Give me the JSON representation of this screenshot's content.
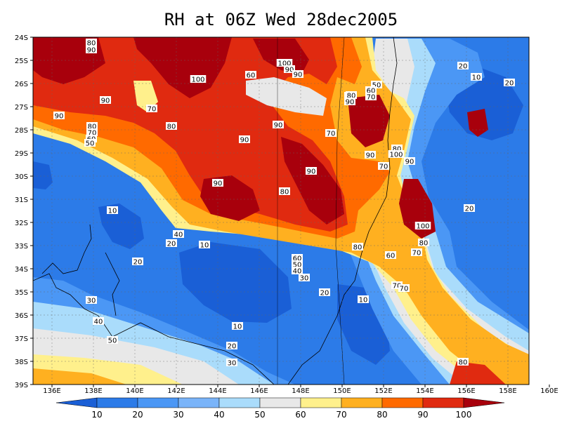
{
  "title": "RH at 06Z Wed 28dec2005",
  "lat_labels": [
    "24S",
    "25S",
    "26S",
    "27S",
    "28S",
    "29S",
    "30S",
    "31S",
    "32S",
    "33S",
    "34S",
    "35S",
    "36S",
    "37S",
    "38S",
    "39S"
  ],
  "lon_labels": [
    "136E",
    "138E",
    "140E",
    "142E",
    "144E",
    "146E",
    "148E",
    "150E",
    "152E",
    "154E",
    "156E",
    "158E",
    "160E"
  ],
  "colorbar": {
    "labels": [
      "10",
      "20",
      "30",
      "40",
      "50",
      "60",
      "70",
      "80",
      "90",
      "100"
    ],
    "colors": [
      "#1a5fd6",
      "#2c7be8",
      "#4b97f5",
      "#7ab4f9",
      "#aadcfb",
      "#e8e8e8",
      "#fff08c",
      "#ffb020",
      "#ff6a00",
      "#e02a10",
      "#a8000c"
    ]
  },
  "contour_labels": [
    {
      "t": "80"
    },
    {
      "t": "90"
    },
    {
      "t": "100"
    },
    {
      "t": "90"
    },
    {
      "t": "90"
    },
    {
      "t": "80"
    },
    {
      "t": "100"
    },
    {
      "t": "60"
    },
    {
      "t": "50"
    },
    {
      "t": "60"
    },
    {
      "t": "80"
    },
    {
      "t": "70"
    },
    {
      "t": "90"
    },
    {
      "t": "20"
    },
    {
      "t": "10"
    },
    {
      "t": "20"
    },
    {
      "t": "90"
    },
    {
      "t": "70"
    },
    {
      "t": "90"
    },
    {
      "t": "80"
    },
    {
      "t": "90"
    },
    {
      "t": "80"
    },
    {
      "t": "70"
    },
    {
      "t": "60"
    },
    {
      "t": "50"
    },
    {
      "t": "40"
    },
    {
      "t": "30"
    },
    {
      "t": "90"
    },
    {
      "t": "70"
    },
    {
      "t": "90"
    },
    {
      "t": "80"
    },
    {
      "t": "100"
    },
    {
      "t": "90"
    },
    {
      "t": "70"
    },
    {
      "t": "90"
    },
    {
      "t": "80"
    },
    {
      "t": "10"
    },
    {
      "t": "20"
    },
    {
      "t": "90"
    },
    {
      "t": "80"
    },
    {
      "t": "100"
    },
    {
      "t": "40"
    },
    {
      "t": "20"
    },
    {
      "t": "10"
    },
    {
      "t": "80"
    },
    {
      "t": "60"
    },
    {
      "t": "70"
    },
    {
      "t": "20"
    },
    {
      "t": "60"
    },
    {
      "t": "50"
    },
    {
      "t": "40"
    },
    {
      "t": "30"
    },
    {
      "t": "70"
    },
    {
      "t": "70"
    },
    {
      "t": "20"
    },
    {
      "t": "10"
    },
    {
      "t": "30"
    },
    {
      "t": "40"
    },
    {
      "t": "50"
    },
    {
      "t": "10"
    },
    {
      "t": "20"
    },
    {
      "t": "30"
    },
    {
      "t": "80"
    }
  ]
}
